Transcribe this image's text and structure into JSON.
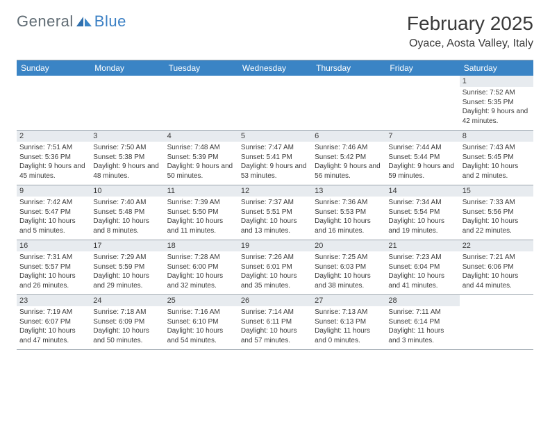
{
  "logo": {
    "general": "General",
    "blue": "Blue"
  },
  "title": "February 2025",
  "location": "Oyace, Aosta Valley, Italy",
  "colors": {
    "header_bg": "#3a84c5",
    "header_text": "#ffffff",
    "daynum_bg": "#e7ebef",
    "border": "#9aa4ad",
    "text": "#3a3a3a",
    "logo_gray": "#5f6b73",
    "logo_blue": "#3a7fc4"
  },
  "weekdays": [
    "Sunday",
    "Monday",
    "Tuesday",
    "Wednesday",
    "Thursday",
    "Friday",
    "Saturday"
  ],
  "weeks": [
    [
      null,
      null,
      null,
      null,
      null,
      null,
      {
        "n": "1",
        "sunrise": "7:52 AM",
        "sunset": "5:35 PM",
        "daylight": "9 hours and 42 minutes."
      }
    ],
    [
      {
        "n": "2",
        "sunrise": "7:51 AM",
        "sunset": "5:36 PM",
        "daylight": "9 hours and 45 minutes."
      },
      {
        "n": "3",
        "sunrise": "7:50 AM",
        "sunset": "5:38 PM",
        "daylight": "9 hours and 48 minutes."
      },
      {
        "n": "4",
        "sunrise": "7:48 AM",
        "sunset": "5:39 PM",
        "daylight": "9 hours and 50 minutes."
      },
      {
        "n": "5",
        "sunrise": "7:47 AM",
        "sunset": "5:41 PM",
        "daylight": "9 hours and 53 minutes."
      },
      {
        "n": "6",
        "sunrise": "7:46 AM",
        "sunset": "5:42 PM",
        "daylight": "9 hours and 56 minutes."
      },
      {
        "n": "7",
        "sunrise": "7:44 AM",
        "sunset": "5:44 PM",
        "daylight": "9 hours and 59 minutes."
      },
      {
        "n": "8",
        "sunrise": "7:43 AM",
        "sunset": "5:45 PM",
        "daylight": "10 hours and 2 minutes."
      }
    ],
    [
      {
        "n": "9",
        "sunrise": "7:42 AM",
        "sunset": "5:47 PM",
        "daylight": "10 hours and 5 minutes."
      },
      {
        "n": "10",
        "sunrise": "7:40 AM",
        "sunset": "5:48 PM",
        "daylight": "10 hours and 8 minutes."
      },
      {
        "n": "11",
        "sunrise": "7:39 AM",
        "sunset": "5:50 PM",
        "daylight": "10 hours and 11 minutes."
      },
      {
        "n": "12",
        "sunrise": "7:37 AM",
        "sunset": "5:51 PM",
        "daylight": "10 hours and 13 minutes."
      },
      {
        "n": "13",
        "sunrise": "7:36 AM",
        "sunset": "5:53 PM",
        "daylight": "10 hours and 16 minutes."
      },
      {
        "n": "14",
        "sunrise": "7:34 AM",
        "sunset": "5:54 PM",
        "daylight": "10 hours and 19 minutes."
      },
      {
        "n": "15",
        "sunrise": "7:33 AM",
        "sunset": "5:56 PM",
        "daylight": "10 hours and 22 minutes."
      }
    ],
    [
      {
        "n": "16",
        "sunrise": "7:31 AM",
        "sunset": "5:57 PM",
        "daylight": "10 hours and 26 minutes."
      },
      {
        "n": "17",
        "sunrise": "7:29 AM",
        "sunset": "5:59 PM",
        "daylight": "10 hours and 29 minutes."
      },
      {
        "n": "18",
        "sunrise": "7:28 AM",
        "sunset": "6:00 PM",
        "daylight": "10 hours and 32 minutes."
      },
      {
        "n": "19",
        "sunrise": "7:26 AM",
        "sunset": "6:01 PM",
        "daylight": "10 hours and 35 minutes."
      },
      {
        "n": "20",
        "sunrise": "7:25 AM",
        "sunset": "6:03 PM",
        "daylight": "10 hours and 38 minutes."
      },
      {
        "n": "21",
        "sunrise": "7:23 AM",
        "sunset": "6:04 PM",
        "daylight": "10 hours and 41 minutes."
      },
      {
        "n": "22",
        "sunrise": "7:21 AM",
        "sunset": "6:06 PM",
        "daylight": "10 hours and 44 minutes."
      }
    ],
    [
      {
        "n": "23",
        "sunrise": "7:19 AM",
        "sunset": "6:07 PM",
        "daylight": "10 hours and 47 minutes."
      },
      {
        "n": "24",
        "sunrise": "7:18 AM",
        "sunset": "6:09 PM",
        "daylight": "10 hours and 50 minutes."
      },
      {
        "n": "25",
        "sunrise": "7:16 AM",
        "sunset": "6:10 PM",
        "daylight": "10 hours and 54 minutes."
      },
      {
        "n": "26",
        "sunrise": "7:14 AM",
        "sunset": "6:11 PM",
        "daylight": "10 hours and 57 minutes."
      },
      {
        "n": "27",
        "sunrise": "7:13 AM",
        "sunset": "6:13 PM",
        "daylight": "11 hours and 0 minutes."
      },
      {
        "n": "28",
        "sunrise": "7:11 AM",
        "sunset": "6:14 PM",
        "daylight": "11 hours and 3 minutes."
      },
      null
    ]
  ],
  "labels": {
    "sunrise": "Sunrise:",
    "sunset": "Sunset:",
    "daylight": "Daylight:"
  }
}
